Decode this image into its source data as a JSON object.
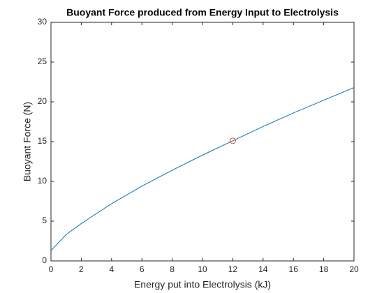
{
  "chart_data": {
    "type": "line",
    "title": "Buoyant Force produced from Energy Input to Electrolysis",
    "x_label": "Energy put into Electrolysis (kJ)",
    "y_label": "Buoyant Force (N)",
    "xlim": [
      0,
      20
    ],
    "xticks": [
      0,
      2,
      4,
      6,
      8,
      10,
      12,
      14,
      16,
      18,
      20
    ],
    "ylim": [
      0,
      30
    ],
    "yticks": [
      0,
      5,
      10,
      15,
      20,
      25,
      30
    ],
    "grid": false,
    "series": [
      {
        "type": "line",
        "color": "#0072bd",
        "x": [
          0,
          1,
          2,
          4,
          6,
          8,
          10,
          12,
          14,
          16,
          18,
          20
        ],
        "values": [
          1.3,
          3.3,
          4.7,
          7.2,
          9.4,
          11.4,
          13.3,
          15.1,
          16.9,
          18.6,
          20.2,
          21.8
        ]
      },
      {
        "type": "scatter",
        "color": "#d95319",
        "x": [
          12
        ],
        "values": [
          15.1
        ]
      }
    ]
  }
}
